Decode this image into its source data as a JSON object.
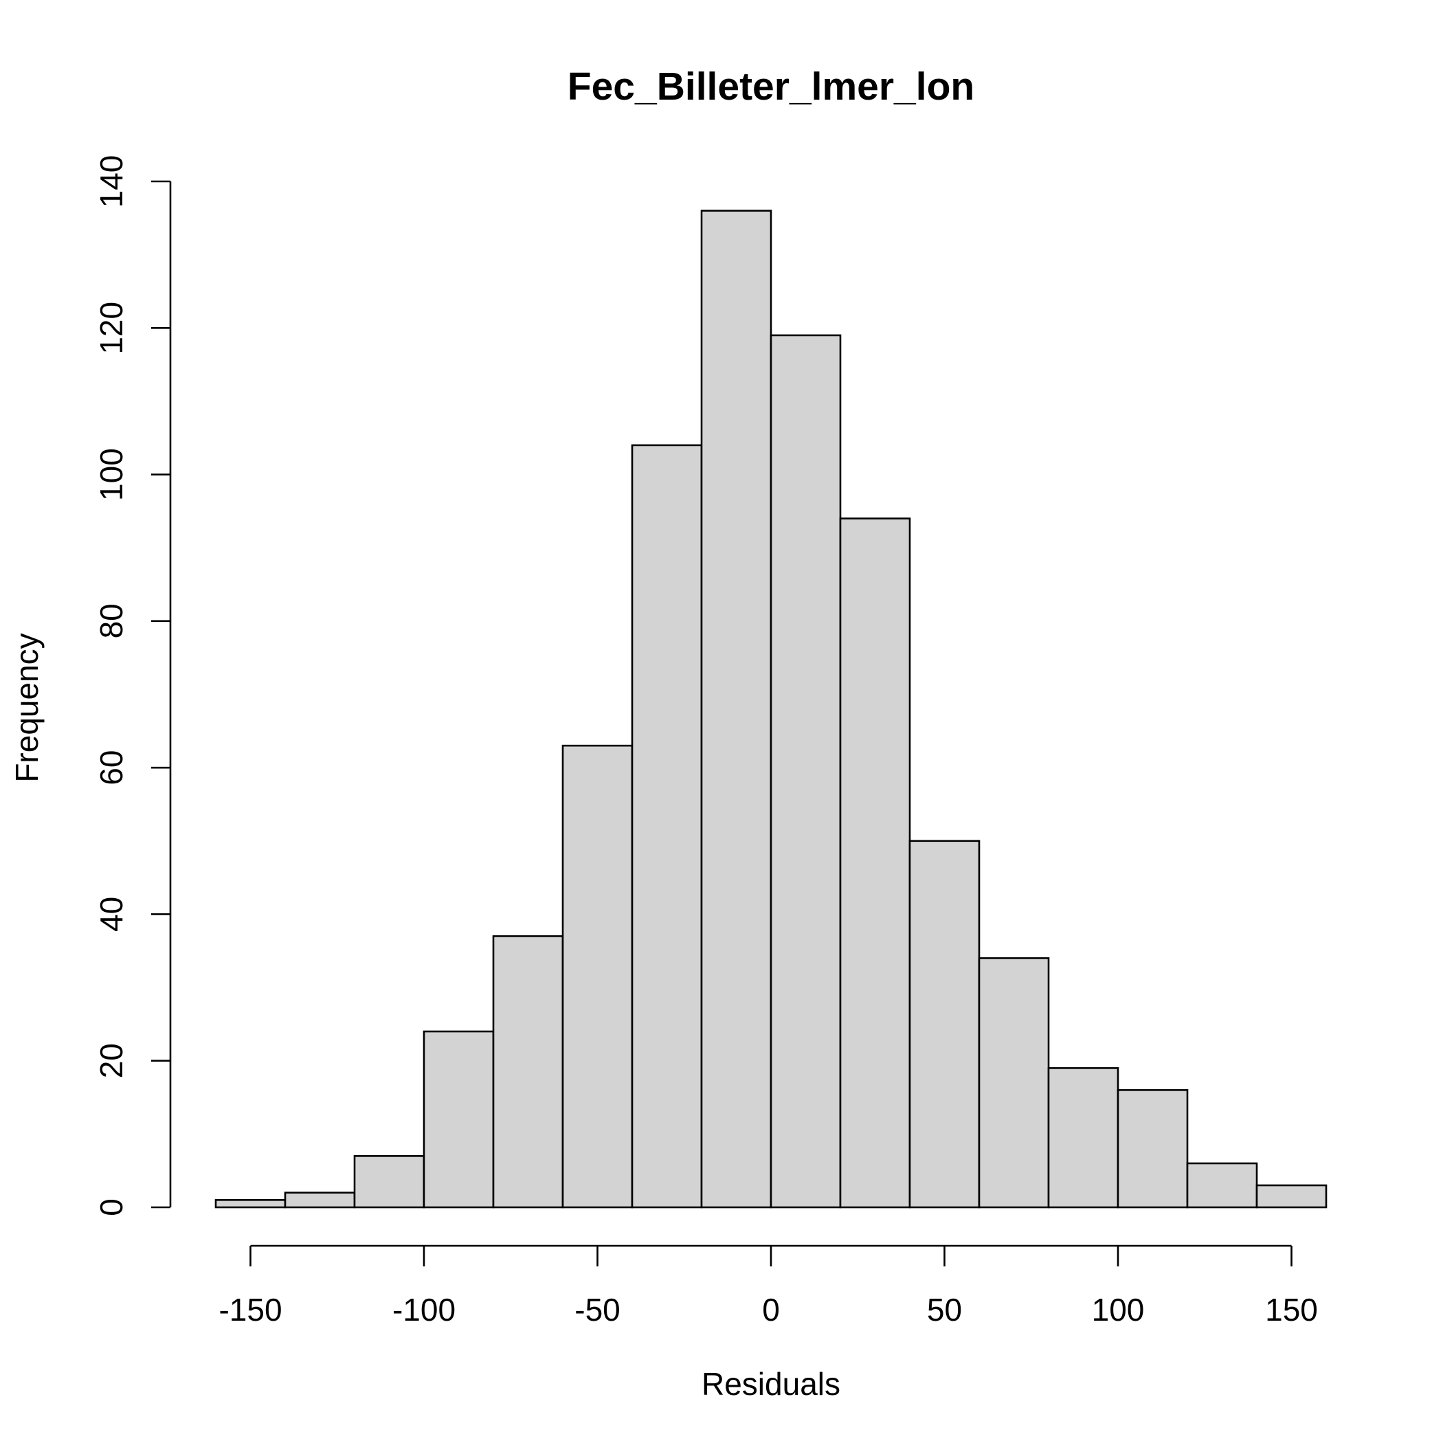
{
  "chart_data": {
    "type": "bar",
    "title": "Fec_Billeter_lmer_lon",
    "xlabel": "Residuals",
    "ylabel": "Frequency",
    "bin_edges": [
      -160,
      -140,
      -120,
      -100,
      -80,
      -60,
      -40,
      -20,
      0,
      20,
      40,
      60,
      80,
      100,
      120,
      140,
      160
    ],
    "values": [
      1,
      2,
      7,
      24,
      37,
      63,
      104,
      136,
      119,
      94,
      50,
      34,
      19,
      16,
      6,
      3
    ],
    "xlim": [
      -160,
      160
    ],
    "ylim": [
      0,
      140
    ],
    "x_ticks": [
      -150,
      -100,
      -50,
      0,
      50,
      100,
      150
    ],
    "x_tick_labels": [
      "-150",
      "-100",
      "-50",
      "0",
      "50",
      "100",
      "150"
    ],
    "y_ticks": [
      0,
      20,
      40,
      60,
      80,
      100,
      120,
      140
    ],
    "y_tick_labels": [
      "0",
      "20",
      "40",
      "60",
      "80",
      "100",
      "120",
      "140"
    ],
    "bar_color": "#d3d3d3",
    "edge_color": "#000000",
    "grid": false
  }
}
